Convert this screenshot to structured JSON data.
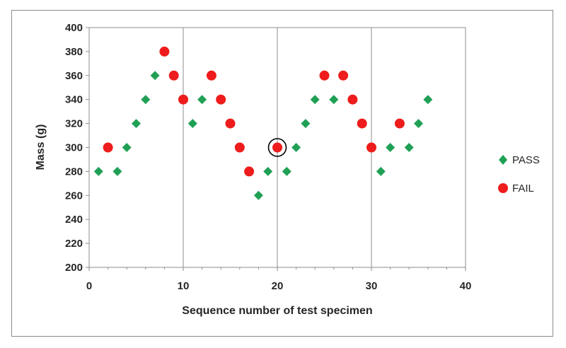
{
  "chart_data": {
    "type": "scatter",
    "title": "",
    "xlabel": "Sequence number of test specimen",
    "ylabel": "Mass (g)",
    "xlim": [
      0,
      40
    ],
    "ylim": [
      200,
      400
    ],
    "x_ticks": [
      "0",
      "10",
      "20",
      "30",
      "40"
    ],
    "y_ticks": [
      "200",
      "220",
      "240",
      "260",
      "280",
      "300",
      "320",
      "340",
      "360",
      "380",
      "400"
    ],
    "grid": {
      "major_x": true,
      "major_y": false
    },
    "legend_position": "right",
    "series": [
      {
        "name": "PASS",
        "marker": "diamond",
        "color": "#1fa055",
        "points": [
          {
            "x": 1,
            "y": 280
          },
          {
            "x": 3,
            "y": 280
          },
          {
            "x": 4,
            "y": 300
          },
          {
            "x": 5,
            "y": 320
          },
          {
            "x": 6,
            "y": 340
          },
          {
            "x": 7,
            "y": 360
          },
          {
            "x": 11,
            "y": 320
          },
          {
            "x": 12,
            "y": 340
          },
          {
            "x": 18,
            "y": 260
          },
          {
            "x": 19,
            "y": 280
          },
          {
            "x": 21,
            "y": 280
          },
          {
            "x": 22,
            "y": 300
          },
          {
            "x": 23,
            "y": 320
          },
          {
            "x": 24,
            "y": 340
          },
          {
            "x": 26,
            "y": 340
          },
          {
            "x": 31,
            "y": 280
          },
          {
            "x": 32,
            "y": 300
          },
          {
            "x": 34,
            "y": 300
          },
          {
            "x": 35,
            "y": 320
          },
          {
            "x": 36,
            "y": 340
          }
        ]
      },
      {
        "name": "FAIL",
        "marker": "circle",
        "color": "#ee1c1c",
        "points": [
          {
            "x": 2,
            "y": 300
          },
          {
            "x": 8,
            "y": 380
          },
          {
            "x": 9,
            "y": 360
          },
          {
            "x": 10,
            "y": 340
          },
          {
            "x": 13,
            "y": 360
          },
          {
            "x": 14,
            "y": 340
          },
          {
            "x": 15,
            "y": 320
          },
          {
            "x": 16,
            "y": 300
          },
          {
            "x": 17,
            "y": 280
          },
          {
            "x": 20,
            "y": 300
          },
          {
            "x": 25,
            "y": 360
          },
          {
            "x": 27,
            "y": 360
          },
          {
            "x": 28,
            "y": 340
          },
          {
            "x": 29,
            "y": 320
          },
          {
            "x": 30,
            "y": 300
          },
          {
            "x": 33,
            "y": 320
          }
        ]
      }
    ],
    "annotations": [
      {
        "type": "circle-highlight",
        "x": 20,
        "y": 300,
        "color": "#000000"
      }
    ]
  }
}
